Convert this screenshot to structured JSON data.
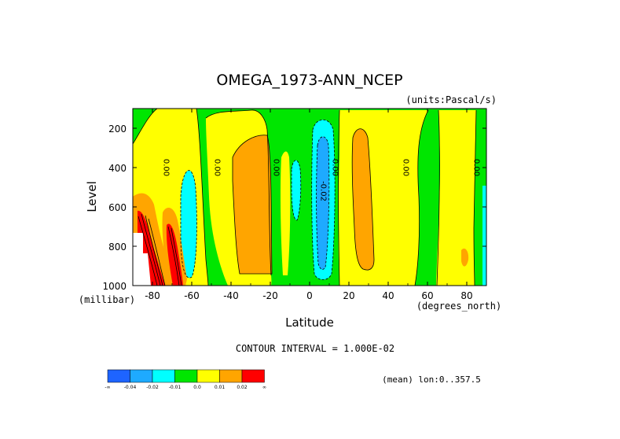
{
  "chart_data": {
    "type": "heatmap",
    "title": "OMEGA_1973-ANN_NCEP",
    "units_note": "(units:Pascal/s)",
    "xlabel": "Latitude",
    "ylabel": "Level",
    "x_units": "(degrees_north)",
    "y_units": "(millibar)",
    "xlim": [
      -90,
      90
    ],
    "ylim": [
      1000,
      100
    ],
    "x_ticks": [
      "-80",
      "-60",
      "-40",
      "-20",
      "0",
      "20",
      "40",
      "60",
      "80"
    ],
    "x_tick_values": [
      -80,
      -60,
      -40,
      -20,
      0,
      20,
      40,
      60,
      80
    ],
    "y_ticks": [
      "200",
      "400",
      "600",
      "800",
      "1000"
    ],
    "y_tick_values": [
      200,
      400,
      600,
      800,
      1000
    ],
    "contour_interval_text": "CONTOUR INTERVAL = 1.000E-02",
    "mean_text": "(mean) lon:0..357.5",
    "contour_labels": [
      {
        "text": "0.00",
        "lat": -73,
        "lev": 400
      },
      {
        "text": "0.00",
        "lat": -47,
        "lev": 400
      },
      {
        "text": "0.00",
        "lat": -17,
        "lev": 400
      },
      {
        "text": "0.00",
        "lat": 13,
        "lev": 400
      },
      {
        "text": "-0.02",
        "lat": 7,
        "lev": 520
      },
      {
        "text": "0.00",
        "lat": 49,
        "lev": 400
      },
      {
        "text": "0.00",
        "lat": 85,
        "lev": 400
      }
    ],
    "colorbar": {
      "colors": [
        "#1e64ff",
        "#1eaaff",
        "#00ffff",
        "#00e600",
        "#ffff00",
        "#ffa500",
        "#ff0000"
      ],
      "labels": [
        "-∞",
        "-0.04",
        "-0.02",
        "-0.01",
        "0.0",
        "0.01",
        "0.02",
        "∞"
      ]
    },
    "colors": {
      "blue": "#1e64ff",
      "light_blue": "#1eaaff",
      "cyan": "#00ffff",
      "green": "#00e600",
      "yellow": "#ffff00",
      "orange": "#ffa500",
      "red": "#ff0000"
    }
  }
}
